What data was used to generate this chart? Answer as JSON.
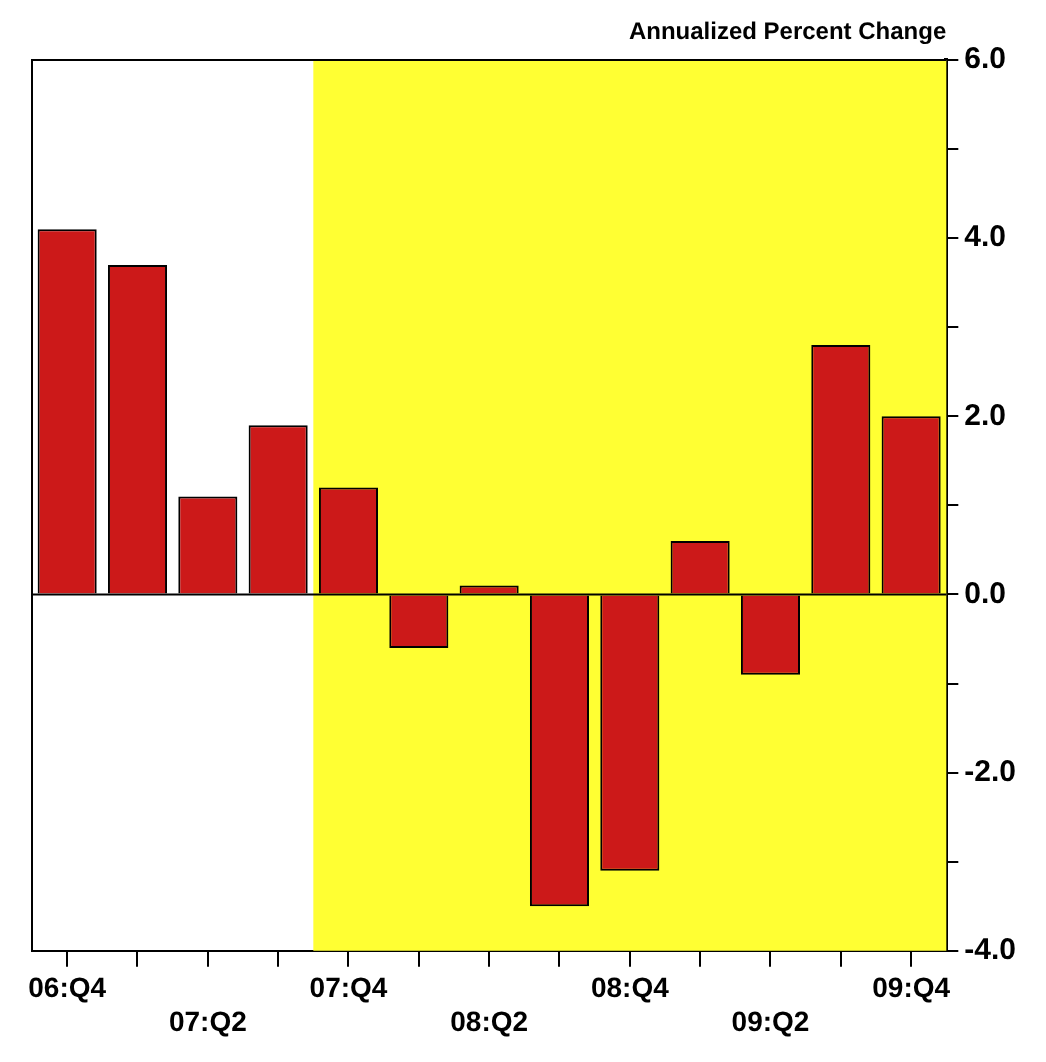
{
  "chart_data": {
    "type": "bar",
    "ylabel": "Annualized Percent Change",
    "categories": [
      "06:Q4",
      null,
      "07:Q2",
      null,
      "07:Q4",
      null,
      "08:Q2",
      null,
      "08:Q4",
      null,
      "09:Q2",
      null,
      "09:Q4"
    ],
    "values": [
      4.1,
      3.7,
      1.1,
      1.9,
      1.2,
      -0.6,
      0.1,
      -3.5,
      -3.1,
      0.6,
      -0.9,
      2.8,
      2.0
    ],
    "color": "#cc1919",
    "ylim": [
      -4,
      6
    ],
    "yticks": [
      {
        "value": -4,
        "label": "-4.0"
      },
      {
        "value": -3,
        "label": null
      },
      {
        "value": -2,
        "label": "-2.0"
      },
      {
        "value": -1,
        "label": null
      },
      {
        "value": 0,
        "label": "0.0"
      },
      {
        "value": 1,
        "label": null
      },
      {
        "value": 2,
        "label": "2.0"
      },
      {
        "value": 3,
        "label": null
      },
      {
        "value": 4,
        "label": "4.0"
      },
      {
        "value": 5,
        "label": null
      },
      {
        "value": 6,
        "label": "6.0"
      }
    ],
    "bands": [
      {
        "axis": "x",
        "from": "07:Q4",
        "to": "09:Q4",
        "color": "#ffff33"
      }
    ],
    "legend": false
  }
}
